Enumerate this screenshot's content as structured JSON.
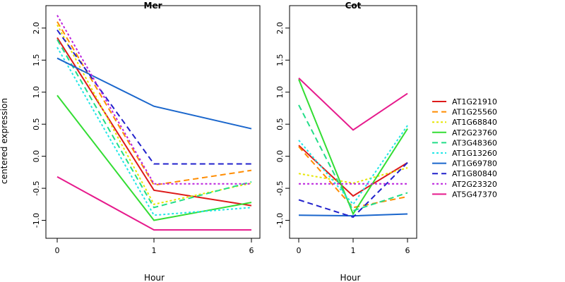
{
  "chart_data": {
    "type": "line",
    "ylabel": "centered expression",
    "xlabel": "Hour",
    "x_ticks": [
      "0",
      "1",
      "6"
    ],
    "y_ticks": [
      "-1.0",
      "-0.5",
      "0.0",
      "0.5",
      "1.0",
      "1.5",
      "2.0"
    ],
    "ylim": [
      -1.28,
      2.35
    ],
    "legend": [
      {
        "name": "AT1G21910",
        "color": "#dd1a1a",
        "dash": "solid"
      },
      {
        "name": "AT1G25560",
        "color": "#ff8c00",
        "dash": "dashed"
      },
      {
        "name": "AT1G68840",
        "color": "#e6e600",
        "dash": "dotted"
      },
      {
        "name": "AT2G23760",
        "color": "#33dd33",
        "dash": "solid"
      },
      {
        "name": "AT3G48360",
        "color": "#22dd88",
        "dash": "dashed"
      },
      {
        "name": "AT1G13260",
        "color": "#22e6e6",
        "dash": "dotted"
      },
      {
        "name": "AT1G69780",
        "color": "#1a66cc",
        "dash": "solid"
      },
      {
        "name": "AT1G80840",
        "color": "#2222cc",
        "dash": "dashed"
      },
      {
        "name": "AT2G23320",
        "color": "#bb22dd",
        "dash": "dotted"
      },
      {
        "name": "AT5G47370",
        "color": "#e61a8c",
        "dash": "solid"
      }
    ],
    "panels": [
      {
        "title": "Mer",
        "series": [
          {
            "name": "AT1G21910",
            "values": [
              1.85,
              -0.53,
              -0.77
            ]
          },
          {
            "name": "AT1G25560",
            "values": [
              2.1,
              -0.45,
              -0.22
            ]
          },
          {
            "name": "AT1G68840",
            "values": [
              2.05,
              -0.75,
              -0.42
            ]
          },
          {
            "name": "AT2G23760",
            "values": [
              0.95,
              -1.0,
              -0.72
            ]
          },
          {
            "name": "AT3G48360",
            "values": [
              1.82,
              -0.8,
              -0.4
            ]
          },
          {
            "name": "AT1G13260",
            "values": [
              1.7,
              -0.92,
              -0.8
            ]
          },
          {
            "name": "AT1G69780",
            "values": [
              1.53,
              0.78,
              0.43
            ]
          },
          {
            "name": "AT1G80840",
            "values": [
              1.97,
              -0.12,
              -0.12
            ]
          },
          {
            "name": "AT2G23320",
            "values": [
              2.2,
              -0.43,
              -0.43
            ]
          },
          {
            "name": "AT5G47370",
            "values": [
              -0.32,
              -1.15,
              -1.15
            ]
          }
        ]
      },
      {
        "title": "Cot",
        "series": [
          {
            "name": "AT1G21910",
            "values": [
              0.17,
              -0.62,
              -0.1
            ]
          },
          {
            "name": "AT1G25560",
            "values": [
              0.15,
              -0.8,
              -0.63
            ]
          },
          {
            "name": "AT1G68840",
            "values": [
              -0.27,
              -0.42,
              -0.18
            ]
          },
          {
            "name": "AT2G23760",
            "values": [
              1.2,
              -0.9,
              0.43
            ]
          },
          {
            "name": "AT3G48360",
            "values": [
              0.8,
              -0.85,
              -0.57
            ]
          },
          {
            "name": "AT1G13260",
            "values": [
              0.25,
              -0.75,
              0.48
            ]
          },
          {
            "name": "AT1G69780",
            "values": [
              -0.92,
              -0.93,
              -0.9
            ]
          },
          {
            "name": "AT1G80840",
            "values": [
              -0.68,
              -0.95,
              -0.1
            ]
          },
          {
            "name": "AT2G23320",
            "values": [
              -0.43,
              -0.43,
              -0.43
            ]
          },
          {
            "name": "AT5G47370",
            "values": [
              1.22,
              0.41,
              0.98
            ]
          }
        ]
      }
    ]
  }
}
